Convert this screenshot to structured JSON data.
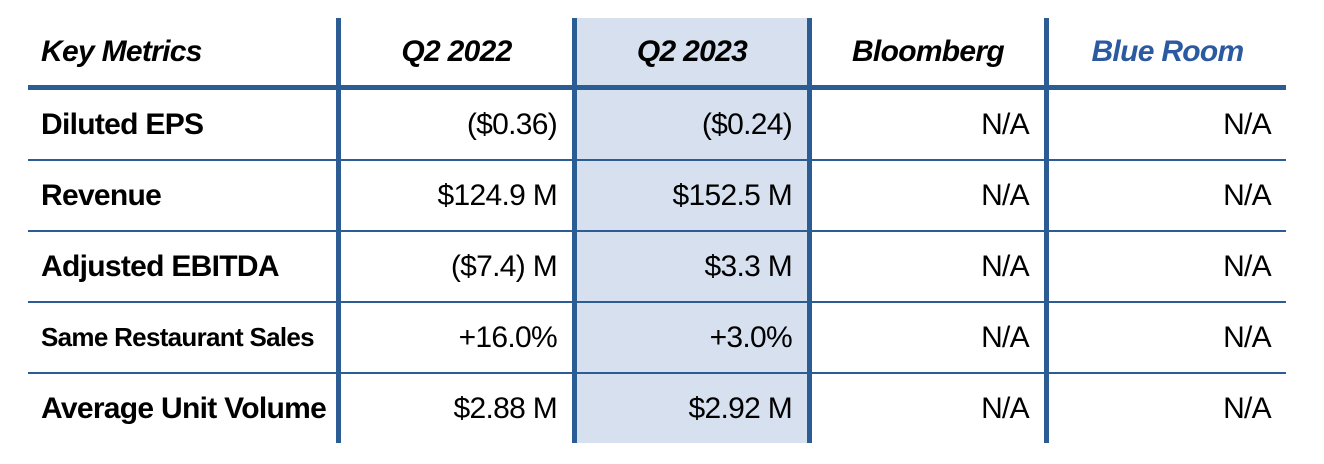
{
  "chart_data": {
    "type": "table",
    "title": "Key Metrics comparison table",
    "columns": [
      {
        "label": "Key Metrics",
        "role": "row-header"
      },
      {
        "label": "Q2 2022"
      },
      {
        "label": "Q2 2023",
        "highlighted": true
      },
      {
        "label": "Bloomberg"
      },
      {
        "label": "Blue Room",
        "text_color": "#2c5aa0"
      }
    ],
    "rows": [
      {
        "metric": "Diluted EPS",
        "q2_2022": "($0.36)",
        "q2_2023": "($0.24)",
        "bloomberg": "N/A",
        "blue_room": "N/A"
      },
      {
        "metric": "Revenue",
        "q2_2022": "$124.9 M",
        "q2_2023": "$152.5 M",
        "bloomberg": "N/A",
        "blue_room": "N/A"
      },
      {
        "metric": "Adjusted EBITDA",
        "q2_2022": "($7.4) M",
        "q2_2023": "$3.3 M",
        "bloomberg": "N/A",
        "blue_room": "N/A"
      },
      {
        "metric": "Same Restaurant Sales",
        "q2_2022": "+16.0%",
        "q2_2023": "+3.0%",
        "bloomberg": "N/A",
        "blue_room": "N/A"
      },
      {
        "metric": "Average Unit Volume",
        "q2_2022": "$2.88 M",
        "q2_2023": "$2.92 M",
        "bloomberg": "N/A",
        "blue_room": "N/A"
      }
    ],
    "layout": {
      "grid": "horizontal separators and vertical dividers in dark blue",
      "highlight_column": "Q2 2023",
      "no_outer_left_right_border": true,
      "no_bottom_border": true
    }
  },
  "colors": {
    "line_blue": "#2b5c94",
    "highlight_blue": "#d6e0ef",
    "blue_room_text": "#2c5aa0",
    "text_black": "#000000",
    "background": "#ffffff"
  }
}
